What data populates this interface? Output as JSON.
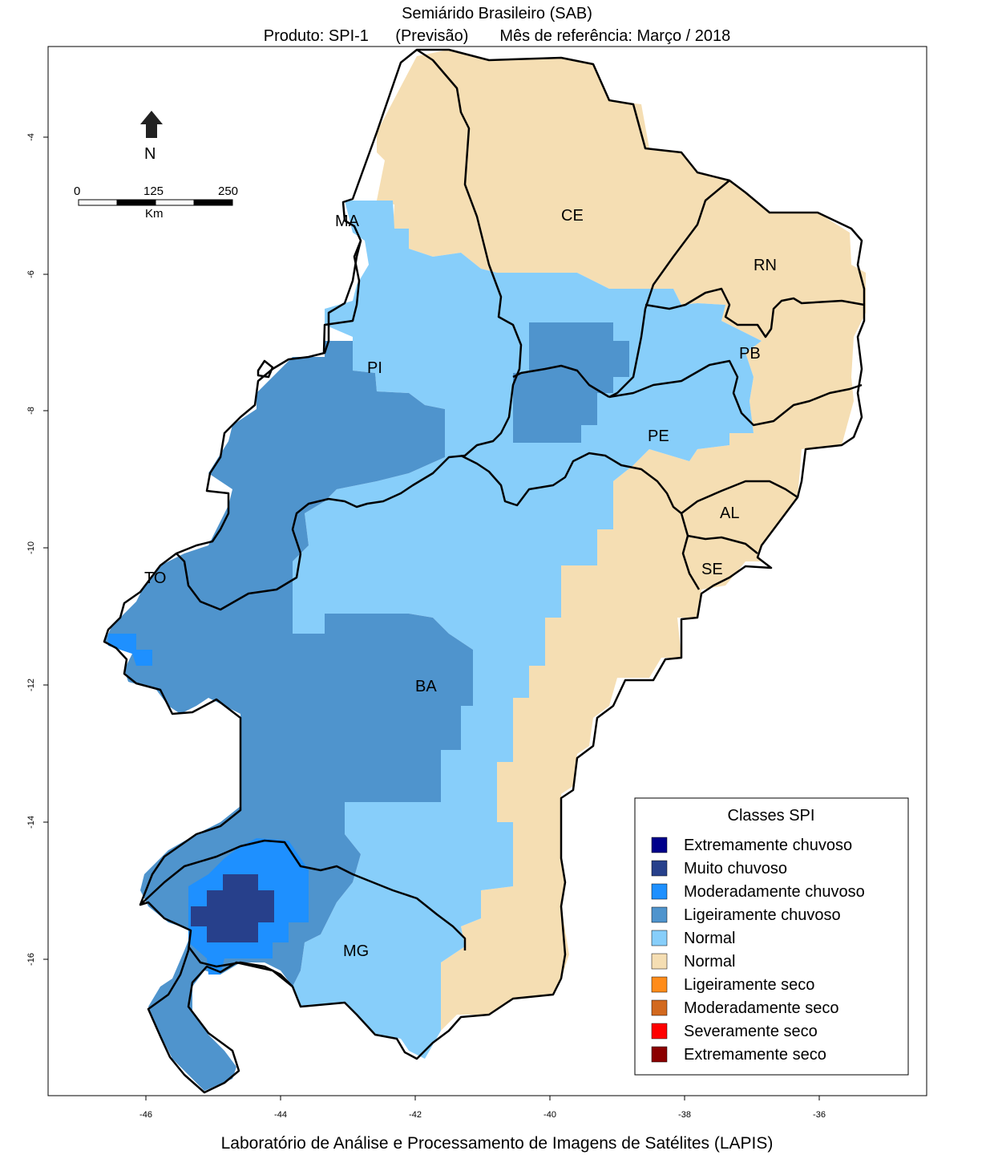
{
  "title": "Semiárido Brasileiro (SAB)",
  "subtitle": {
    "product": "Produto: SPI-1",
    "forecast": "(Previsão)",
    "reference": "Mês de referência:  Março / 2018"
  },
  "footer": "Laboratório de Análise e Processamento de Imagens de Satélites (LAPIS)",
  "axes": {
    "x_ticks": [
      "-46",
      "-44",
      "-42",
      "-40",
      "-38",
      "-36"
    ],
    "y_ticks": [
      "-4",
      "-6",
      "-8",
      "-10",
      "-12",
      "-14",
      "-16"
    ]
  },
  "north_arrow": {
    "label": "N"
  },
  "scale_bar": {
    "labels": [
      "0",
      "125",
      "250"
    ],
    "unit": "Km"
  },
  "states": [
    "MA",
    "CE",
    "RN",
    "PI",
    "PB",
    "PE",
    "AL",
    "SE",
    "TO",
    "BA",
    "MG"
  ],
  "legend": {
    "title": "Classes SPI",
    "items": [
      {
        "label": "Extremamente chuvoso",
        "color": "#00008b"
      },
      {
        "label": "Muito chuvoso",
        "color": "#27408b"
      },
      {
        "label": "Moderadamente chuvoso",
        "color": "#1e90ff"
      },
      {
        "label": "Ligeiramente chuvoso",
        "color": "#4f94cd"
      },
      {
        "label": "Normal",
        "color": "#87cefa"
      },
      {
        "label": "Normal",
        "color": "#f5deb3"
      },
      {
        "label": "Ligeiramente seco",
        "color": "#ff8c1a"
      },
      {
        "label": "Moderadamente seco",
        "color": "#d2691e"
      },
      {
        "label": "Severamente seco",
        "color": "#ff0000"
      },
      {
        "label": "Extremamente seco",
        "color": "#8b0000"
      }
    ]
  },
  "colors": {
    "normal_wet": "#87cefa",
    "normal_dry": "#f5deb3",
    "slightly_wet": "#4f94cd",
    "moderately_wet": "#1e90ff",
    "very_wet": "#27408b"
  }
}
